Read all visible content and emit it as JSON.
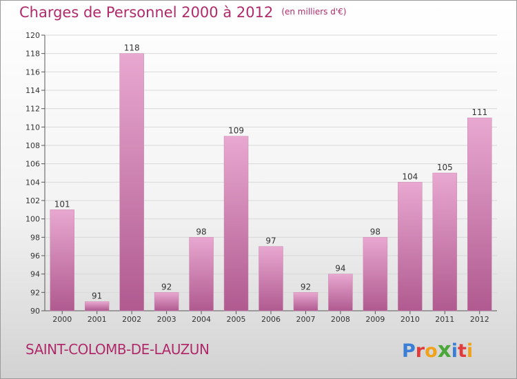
{
  "header": {
    "title": "Charges de Personnel 2000 à 2012",
    "subtitle": "(en milliers d'€)"
  },
  "footer": {
    "commune": "SAINT-COLOMB-DE-LAUZUN",
    "brand": {
      "letters": [
        "P",
        "r",
        "o",
        "x",
        "i",
        "t",
        "i"
      ],
      "colors": [
        "#3a7fd5",
        "#e23b3b",
        "#f0a21a",
        "#4aa83a",
        "#3a7fd5",
        "#e23b3b",
        "#f0a21a"
      ]
    }
  },
  "colors": {
    "accent": "#b02a6a",
    "bar_light": "#e8a8d0",
    "bar_dark": "#b05a90",
    "grid": "#d8d8d8"
  },
  "chart_data": {
    "type": "bar",
    "title": "Charges de Personnel 2000 à 2012",
    "subtitle": "(en milliers d'€)",
    "categories": [
      "2000",
      "2001",
      "2002",
      "2003",
      "2004",
      "2005",
      "2006",
      "2007",
      "2008",
      "2009",
      "2010",
      "2011",
      "2012"
    ],
    "values": [
      101,
      91,
      118,
      92,
      98,
      109,
      97,
      92,
      94,
      98,
      104,
      105,
      111
    ],
    "ylim": [
      90,
      120
    ],
    "yticks": [
      90,
      92,
      94,
      96,
      98,
      100,
      102,
      104,
      106,
      108,
      110,
      112,
      114,
      116,
      118,
      120
    ],
    "grid": true,
    "legend": "none"
  }
}
